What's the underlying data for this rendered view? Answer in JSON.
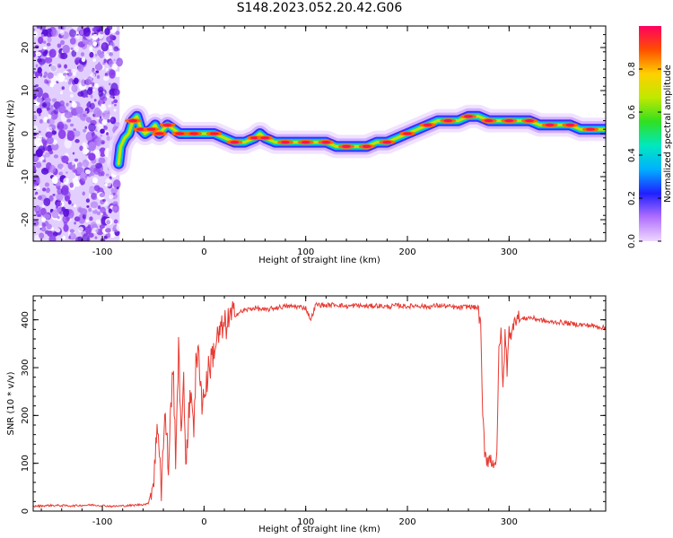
{
  "title": "S148.2023.052.20.42.G06",
  "colors": {
    "line": "#e83a32",
    "axis": "#000000",
    "noise": "#9b45e6",
    "noise_dark": "#6a17e0"
  },
  "chart_data": [
    {
      "type": "heatmap",
      "xlabel": "Height of straight line (km)",
      "ylabel": "Frequency (Hz)",
      "xlim": [
        -168,
        395
      ],
      "ylim": [
        -25,
        25
      ],
      "xticks": [
        -100,
        0,
        100,
        200,
        300
      ],
      "yticks": [
        -20,
        -10,
        0,
        10,
        20
      ],
      "colorbar": {
        "label": "Normalized spectral amplitude",
        "range": [
          0.0,
          1.0
        ],
        "ticks": [
          0.0,
          0.2,
          0.4,
          0.6,
          0.8
        ],
        "colormap": [
          "#f0d8ff",
          "#b070ff",
          "#2020ff",
          "#00b0ff",
          "#00e8c0",
          "#30e020",
          "#c0e800",
          "#ffd000",
          "#ff5000",
          "#ff0060"
        ]
      },
      "noise_region_x": [
        -168,
        -83
      ],
      "ridge": [
        [
          -84,
          -7
        ],
        [
          -82,
          -3
        ],
        [
          -78,
          -1
        ],
        [
          -74,
          0
        ],
        [
          -70,
          3
        ],
        [
          -66,
          4
        ],
        [
          -62,
          1
        ],
        [
          -58,
          0
        ],
        [
          -52,
          1
        ],
        [
          -48,
          2
        ],
        [
          -44,
          0
        ],
        [
          -40,
          1
        ],
        [
          -36,
          2
        ],
        [
          -30,
          1
        ],
        [
          -24,
          0
        ],
        [
          -20,
          0
        ],
        [
          -10,
          0
        ],
        [
          0,
          0
        ],
        [
          10,
          0
        ],
        [
          20,
          -1
        ],
        [
          30,
          -2
        ],
        [
          40,
          -2
        ],
        [
          50,
          -1
        ],
        [
          55,
          0
        ],
        [
          60,
          -1
        ],
        [
          70,
          -2
        ],
        [
          80,
          -2
        ],
        [
          90,
          -2
        ],
        [
          100,
          -2
        ],
        [
          110,
          -2
        ],
        [
          120,
          -2
        ],
        [
          130,
          -3
        ],
        [
          140,
          -3
        ],
        [
          150,
          -3
        ],
        [
          160,
          -3
        ],
        [
          170,
          -2
        ],
        [
          180,
          -2
        ],
        [
          190,
          -1
        ],
        [
          200,
          0
        ],
        [
          210,
          1
        ],
        [
          220,
          2
        ],
        [
          230,
          3
        ],
        [
          240,
          3
        ],
        [
          250,
          3
        ],
        [
          260,
          4
        ],
        [
          270,
          4
        ],
        [
          280,
          3
        ],
        [
          290,
          3
        ],
        [
          300,
          3
        ],
        [
          310,
          3
        ],
        [
          320,
          3
        ],
        [
          330,
          2
        ],
        [
          340,
          2
        ],
        [
          350,
          2
        ],
        [
          360,
          2
        ],
        [
          370,
          1
        ],
        [
          380,
          1
        ],
        [
          395,
          1
        ]
      ]
    },
    {
      "type": "line",
      "xlabel": "Height of straight line (km)",
      "ylabel": "SNR (10 * v/v)",
      "xlim": [
        -168,
        395
      ],
      "ylim": [
        0,
        450
      ],
      "xticks": [
        -100,
        0,
        100,
        200,
        300
      ],
      "yticks": [
        0,
        100,
        200,
        300,
        400
      ],
      "series": [
        {
          "x": [
            -168,
            -150,
            -130,
            -110,
            -90,
            -70,
            -55,
            -50,
            -48,
            -45,
            -42,
            -40,
            -38,
            -35,
            -32,
            -30,
            -28,
            -25,
            -22,
            -20,
            -18,
            -15,
            -12,
            -10,
            -8,
            -5,
            -2,
            0,
            5,
            10,
            15,
            20,
            25,
            30,
            40,
            50,
            60,
            70,
            80,
            90,
            100,
            105,
            110,
            120,
            130,
            140,
            150,
            160,
            170,
            180,
            190,
            200,
            210,
            220,
            230,
            240,
            250,
            260,
            270,
            272,
            274,
            276,
            278,
            280,
            284,
            288,
            290,
            292,
            294,
            296,
            298,
            300,
            302,
            305,
            310,
            320,
            330,
            340,
            350,
            360,
            370,
            380,
            390,
            395
          ],
          "y": [
            10,
            12,
            11,
            13,
            10,
            12,
            15,
            60,
            120,
            180,
            50,
            140,
            200,
            90,
            250,
            280,
            120,
            330,
            160,
            260,
            110,
            200,
            250,
            180,
            300,
            330,
            230,
            240,
            300,
            340,
            370,
            385,
            400,
            410,
            420,
            425,
            420,
            425,
            428,
            428,
            425,
            400,
            432,
            430,
            432,
            428,
            430,
            428,
            430,
            427,
            430,
            428,
            430,
            427,
            430,
            428,
            425,
            428,
            425,
            380,
            200,
            130,
            110,
            110,
            105,
            105,
            340,
            380,
            250,
            370,
            300,
            390,
            350,
            410,
            400,
            405,
            400,
            395,
            395,
            392,
            390,
            388,
            385,
            382
          ]
        }
      ]
    }
  ]
}
